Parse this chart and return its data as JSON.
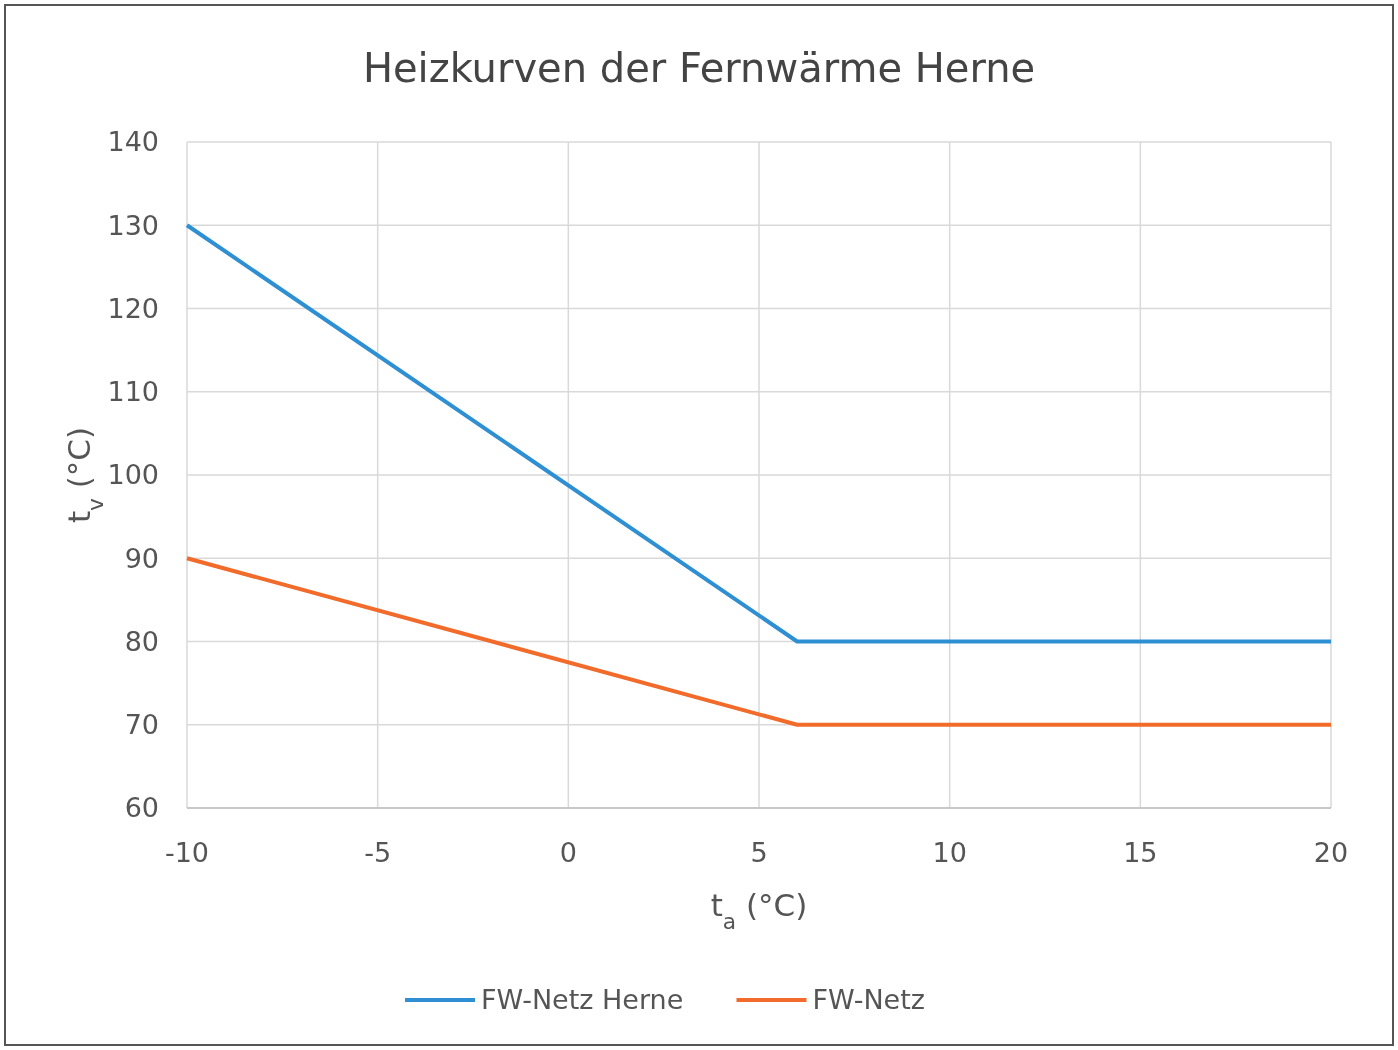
{
  "chart_data": {
    "type": "line",
    "title": "Heizkurven der Fernwärme Herne",
    "xlabel": "t$_{a}$ (°C)",
    "ylabel": "t$_{v}$ (°C)",
    "x": [
      -10,
      6,
      20
    ],
    "series": [
      {
        "name": "FW-Netz Herne",
        "color": "#2e8fd3",
        "values": [
          130,
          80,
          80
        ]
      },
      {
        "name": "FW-Netz",
        "color": "#f26b2a",
        "values": [
          90,
          70,
          70
        ]
      }
    ],
    "xlim": [
      -10,
      20
    ],
    "xticks": [
      -10,
      -5,
      0,
      5,
      10,
      15,
      20
    ],
    "ylim": [
      60,
      140
    ],
    "yticks": [
      60,
      70,
      80,
      90,
      100,
      110,
      120,
      130,
      140
    ],
    "grid": true,
    "legend": "bottom",
    "marker": "none",
    "line_style": "solid"
  }
}
